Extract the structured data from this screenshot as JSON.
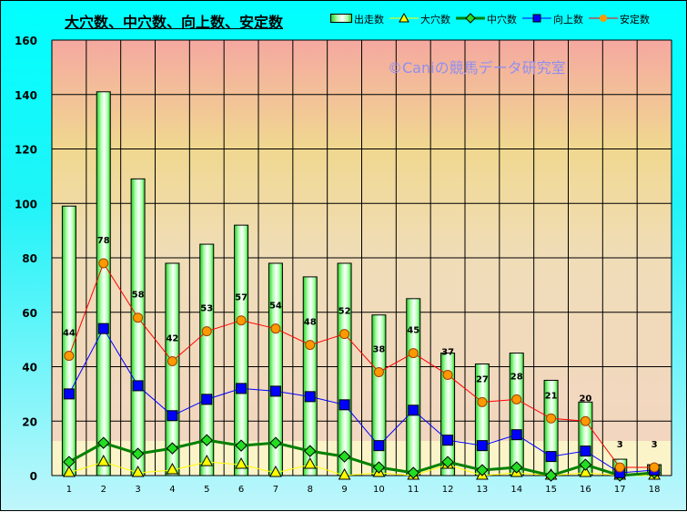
{
  "chart_data": {
    "type": "bar+line",
    "title": "大穴数、中穴数、向上数、安定数",
    "watermark": "©Caniの競馬データ研究室",
    "categories": [
      "1",
      "2",
      "3",
      "4",
      "5",
      "6",
      "7",
      "8",
      "9",
      "10",
      "11",
      "12",
      "13",
      "14",
      "15",
      "16",
      "17",
      "18"
    ],
    "ylim": [
      0,
      160
    ],
    "yticks": [
      0,
      20,
      40,
      60,
      80,
      100,
      120,
      140,
      160
    ],
    "grid": true,
    "legend_position": "top-right",
    "series": [
      {
        "name": "出走数",
        "kind": "bar",
        "color": "#00cc00",
        "values": [
          99,
          141,
          109,
          78,
          85,
          92,
          78,
          73,
          78,
          59,
          65,
          45,
          41,
          45,
          35,
          27,
          6,
          4
        ]
      },
      {
        "name": "大穴数",
        "kind": "line",
        "color": "#ffff00",
        "marker": "triangle",
        "values": [
          1,
          5,
          1,
          2,
          5,
          4,
          1,
          4,
          0,
          1,
          0,
          4,
          0,
          1,
          0,
          1,
          0,
          0
        ]
      },
      {
        "name": "中穴数",
        "kind": "line",
        "color": "#008000",
        "marker": "diamond",
        "values": [
          5,
          12,
          8,
          10,
          13,
          11,
          12,
          9,
          7,
          3,
          1,
          5,
          2,
          3,
          0,
          4,
          0,
          1
        ]
      },
      {
        "name": "向上数",
        "kind": "line",
        "color": "#0000ff",
        "marker": "square",
        "values": [
          30,
          54,
          33,
          22,
          28,
          32,
          31,
          29,
          26,
          11,
          24,
          13,
          11,
          15,
          7,
          9,
          1,
          2
        ]
      },
      {
        "name": "安定数",
        "kind": "line",
        "color": "#ff0000",
        "marker": "circle",
        "marker_color": "#ff9900",
        "values": [
          44,
          78,
          58,
          42,
          53,
          57,
          54,
          48,
          52,
          38,
          45,
          37,
          27,
          28,
          21,
          20,
          3,
          3
        ],
        "data_labels": true
      }
    ]
  }
}
